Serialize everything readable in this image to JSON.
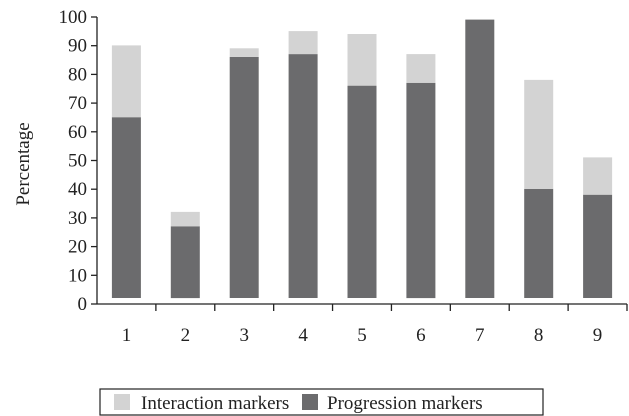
{
  "chart_data": {
    "type": "bar",
    "stacked": true,
    "categories": [
      "1",
      "2",
      "3",
      "4",
      "5",
      "6",
      "7",
      "8",
      "9"
    ],
    "series": [
      {
        "name": "Progression markers",
        "color": "#6b6b6d",
        "values": [
          63,
          25,
          84,
          85,
          74,
          75,
          97,
          38,
          36
        ]
      },
      {
        "name": "Interaction markers",
        "color": "#d3d3d3",
        "values": [
          25,
          5,
          3,
          8,
          18,
          10,
          0,
          38,
          13
        ]
      }
    ],
    "xlabel": "",
    "ylabel": "Percentage",
    "ylim": [
      0,
      100
    ],
    "yticks": [
      0,
      10,
      20,
      30,
      40,
      50,
      60,
      70,
      80,
      90,
      100
    ],
    "grid": false,
    "legend": {
      "placement": "bottom-center",
      "order": [
        "Interaction markers",
        "Progression markers"
      ]
    }
  }
}
